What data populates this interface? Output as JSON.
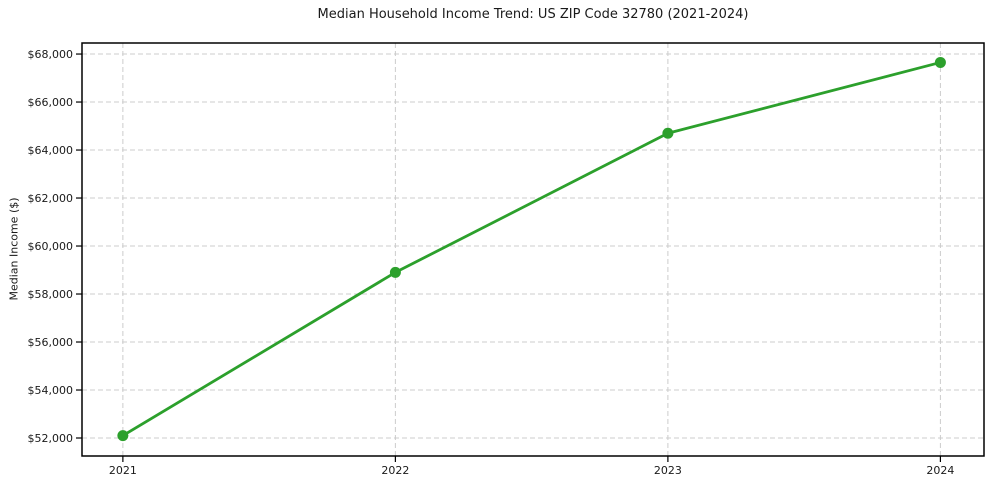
{
  "chart_data": {
    "type": "line",
    "title": "Median Household Income Trend: US ZIP Code 32780 (2021-2024)",
    "xlabel": "",
    "ylabel": "Median Income ($)",
    "x": [
      2021,
      2022,
      2023,
      2024
    ],
    "x_tick_labels": [
      "2021",
      "2022",
      "2023",
      "2024"
    ],
    "series": [
      {
        "name": "Median Household Income",
        "values": [
          52100,
          58900,
          64700,
          67650
        ]
      }
    ],
    "y_ticks": [
      52000,
      54000,
      56000,
      58000,
      60000,
      62000,
      64000,
      66000,
      68000
    ],
    "y_tick_labels": [
      "$52,000",
      "$54,000",
      "$56,000",
      "$58,000",
      "$60,000",
      "$62,000",
      "$64,000",
      "$66,000",
      "$68,000"
    ],
    "xlim": [
      2020.85,
      2024.16
    ],
    "ylim": [
      51250,
      68460
    ],
    "grid": true,
    "grid_style": "dashed",
    "legend": false,
    "colors": {
      "line": "#2ca02c",
      "marker": "#2ca02c",
      "grid": "#cccccc",
      "spine": "#000000",
      "text": "#1a1a1a"
    }
  }
}
